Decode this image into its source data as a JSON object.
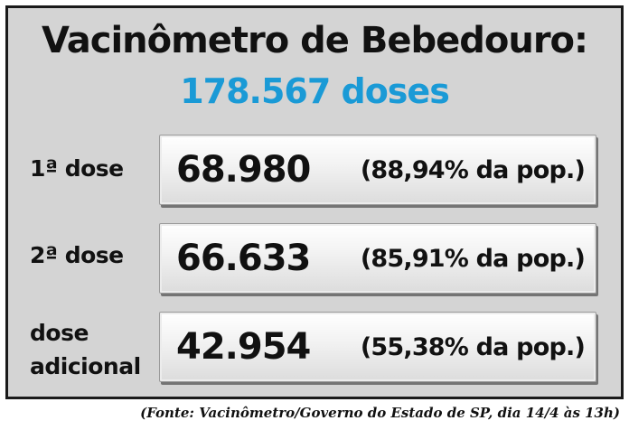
{
  "title": "Vacinômetro de Bebedouro:",
  "total": "178.567 doses",
  "total_color": "#1a9ad6",
  "rows": [
    {
      "label_lines": [
        "1ª dose"
      ],
      "value": "68.980",
      "percent": "(88,94% da pop.)"
    },
    {
      "label_lines": [
        "2ª dose"
      ],
      "value": "66.633",
      "percent": "(85,91% da pop.)"
    },
    {
      "label_lines": [
        "dose",
        "adicional"
      ],
      "value": "42.954",
      "percent": "(55,38% da pop.)"
    }
  ],
  "source": "(Fonte: Vacinômetro/Governo do Estado de SP, dia 14/4 às 13h)"
}
